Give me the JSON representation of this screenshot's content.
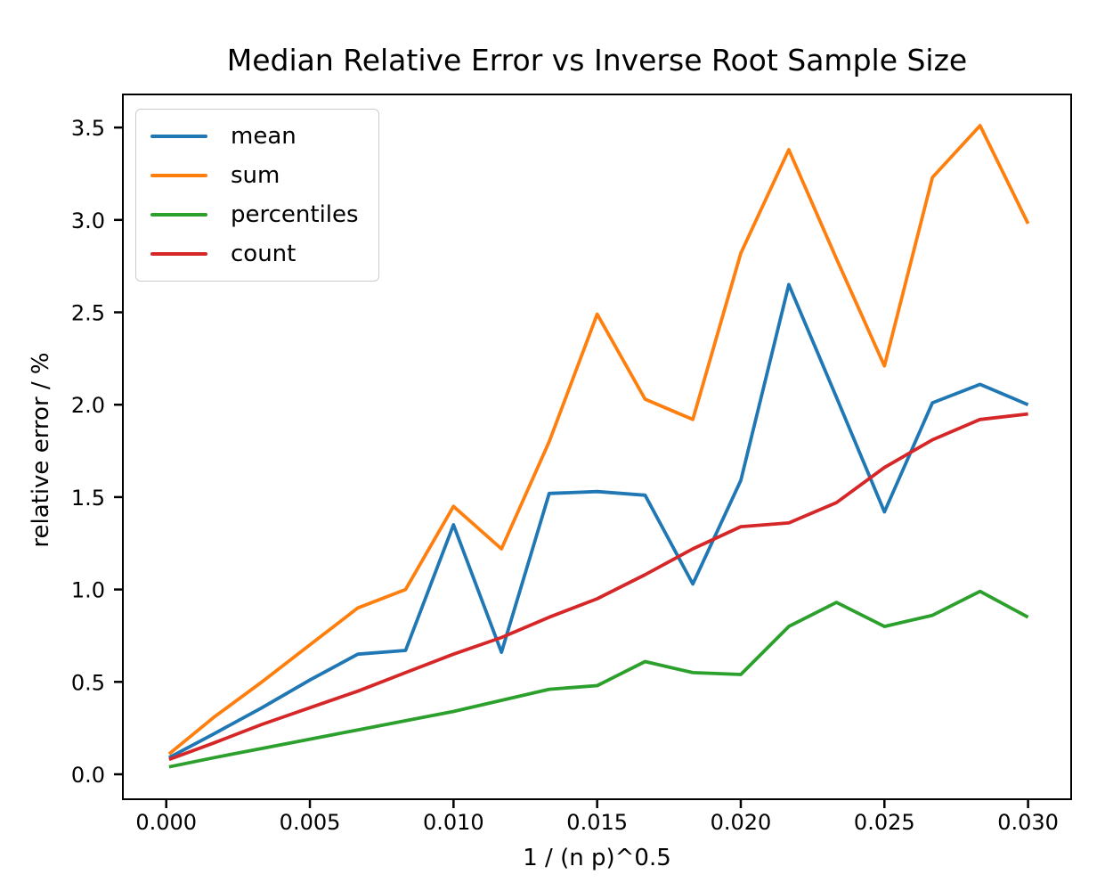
{
  "figure": {
    "title": "Median Relative Error vs Inverse Root Sample Size",
    "background_color": "#ffffff"
  },
  "chart_data": {
    "type": "line",
    "title": "Median Relative Error vs Inverse Root Sample Size",
    "xlabel": "1 / (n p)^0.5",
    "ylabel": "relative error / %",
    "grid": false,
    "legend_position": "upper left",
    "xlim": [
      -0.00151,
      0.0315
    ],
    "ylim": [
      -0.135,
      3.679
    ],
    "x": [
      0.0001,
      0.00167,
      0.00333,
      0.005,
      0.00667,
      0.00833,
      0.01,
      0.01167,
      0.01333,
      0.015,
      0.01667,
      0.01833,
      0.02,
      0.02167,
      0.02333,
      0.025,
      0.02667,
      0.02833,
      0.03
    ],
    "series": [
      {
        "name": "mean",
        "color": "#1f77b4",
        "values": [
          0.09,
          0.22,
          0.36,
          0.51,
          0.65,
          0.67,
          1.35,
          0.66,
          1.52,
          1.53,
          1.51,
          1.03,
          1.59,
          2.65,
          2.04,
          1.42,
          2.01,
          2.11,
          2.0
        ]
      },
      {
        "name": "sum",
        "color": "#ff7f0e",
        "values": [
          0.11,
          0.31,
          0.5,
          0.7,
          0.9,
          1.0,
          1.45,
          1.22,
          1.8,
          2.49,
          2.03,
          1.92,
          2.82,
          3.38,
          2.79,
          2.21,
          3.23,
          3.51,
          2.98
        ]
      },
      {
        "name": "percentiles",
        "color": "#2ca02c",
        "values": [
          0.04,
          0.09,
          0.14,
          0.19,
          0.24,
          0.29,
          0.34,
          0.4,
          0.46,
          0.48,
          0.61,
          0.55,
          0.54,
          0.8,
          0.93,
          0.8,
          0.86,
          0.99,
          0.85
        ]
      },
      {
        "name": "count",
        "color": "#d62728",
        "values": [
          0.08,
          0.17,
          0.27,
          0.36,
          0.45,
          0.55,
          0.65,
          0.74,
          0.85,
          0.95,
          1.08,
          1.22,
          1.34,
          1.36,
          1.47,
          1.66,
          1.81,
          1.92,
          1.95
        ]
      }
    ],
    "xticks": {
      "values": [
        0.0,
        0.005,
        0.01,
        0.015,
        0.02,
        0.025,
        0.03
      ],
      "labels": [
        "0.000",
        "0.005",
        "0.010",
        "0.015",
        "0.020",
        "0.025",
        "0.030"
      ]
    },
    "yticks": {
      "values": [
        0.0,
        0.5,
        1.0,
        1.5,
        2.0,
        2.5,
        3.0,
        3.5
      ],
      "labels": [
        "0.0",
        "0.5",
        "1.0",
        "1.5",
        "2.0",
        "2.5",
        "3.0",
        "3.5"
      ]
    }
  },
  "styles": {
    "axis_color": "#000000",
    "text_color": "#000000",
    "legend_border_color": "#cbcbcb",
    "line_width": 3.8
  }
}
